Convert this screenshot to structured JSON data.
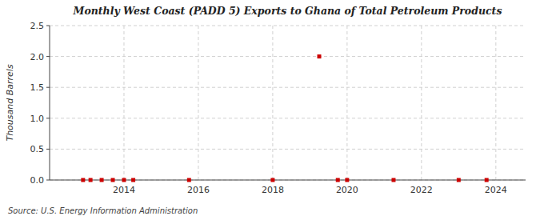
{
  "chart_data": {
    "type": "scatter",
    "title": "Monthly West Coast (PADD 5) Exports to Ghana of Total Petroleum Products",
    "ylabel": "Thousand Barrels",
    "annotations": [
      "Source: U.S. Energy Information Administration"
    ],
    "x": [
      2012.9,
      2013.1,
      2013.4,
      2013.7,
      2014.0,
      2014.25,
      2015.75,
      2018.0,
      2019.25,
      2019.75,
      2020.0,
      2021.25,
      2023.0,
      2023.75
    ],
    "values": [
      0.0,
      0.0,
      0.0,
      0.0,
      0.0,
      0.0,
      0.0,
      0.0,
      2.0,
      0.0,
      0.0,
      0.0,
      0.0,
      0.0
    ],
    "color": "#cc0000",
    "marker": "square",
    "xlim": [
      2012.0,
      2024.8
    ],
    "ylim": [
      0.0,
      2.5
    ],
    "xticks": [
      2014,
      2016,
      2018,
      2020,
      2022,
      2024
    ],
    "yticks": [
      {
        "value": 0.0,
        "label": "0.0"
      },
      0.5,
      {
        "value": 1.0,
        "label": "1.0"
      },
      1.5,
      {
        "value": 2.0,
        "label": "2.0"
      },
      2.5
    ],
    "grid": true
  }
}
